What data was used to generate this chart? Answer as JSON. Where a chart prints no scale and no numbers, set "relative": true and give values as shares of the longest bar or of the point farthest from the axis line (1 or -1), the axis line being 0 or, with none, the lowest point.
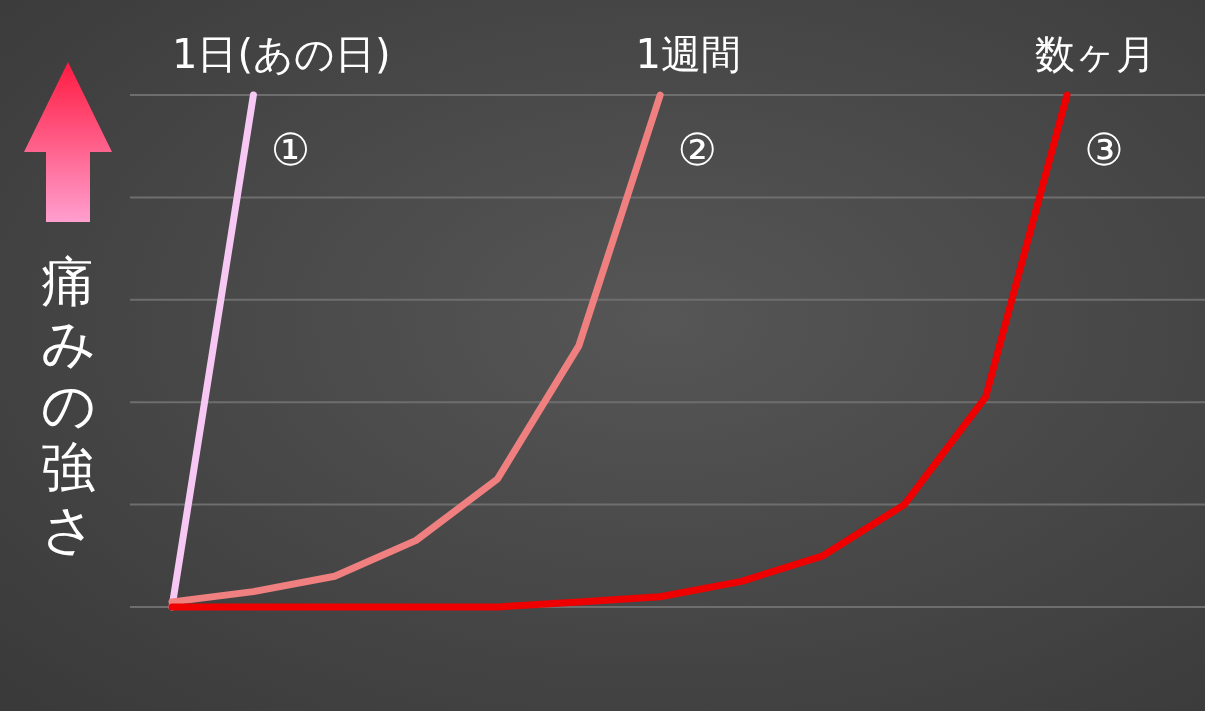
{
  "chart_data": {
    "type": "line",
    "relative": true,
    "ylabel": "痛みの強さ",
    "grid": "y",
    "marker": "none",
    "line_style": "solid",
    "categories": [
      null,
      null,
      null,
      null,
      null,
      null,
      null,
      null,
      null,
      null,
      null,
      null
    ],
    "series": [
      {
        "name": "1日(あの日)",
        "color": "#f8c8f4",
        "values": [
          0,
          1,
          null,
          null,
          null,
          null,
          null,
          null,
          null,
          null,
          null,
          null
        ]
      },
      {
        "name": "1週間",
        "color": "#f08080",
        "values": [
          0.01,
          0.03,
          0.06,
          0.13,
          0.25,
          0.51,
          1,
          null,
          null,
          null,
          null,
          null
        ]
      },
      {
        "name": "数ヶ月",
        "color": "#ee0000",
        "values": [
          0,
          0,
          0,
          0,
          0,
          0.01,
          0.02,
          0.05,
          0.1,
          0.2,
          0.41,
          1
        ]
      }
    ],
    "annotations": [
      "①",
      "②",
      "③"
    ]
  }
}
